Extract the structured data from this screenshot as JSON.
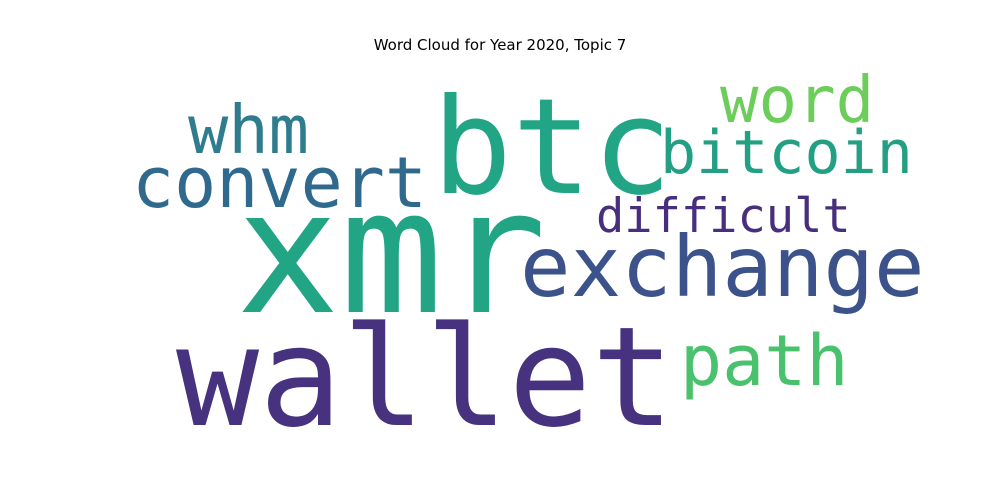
{
  "chart_data": {
    "type": "word_cloud",
    "title": "Word Cloud for Year 2020, Topic 7",
    "words": [
      {
        "text": "xmr",
        "weight": 1.0,
        "color": "#21a585"
      },
      {
        "text": "wallet",
        "weight": 0.78,
        "color": "#46327e"
      },
      {
        "text": "btc",
        "weight": 0.76,
        "color": "#21a585"
      },
      {
        "text": "exchange",
        "weight": 0.48,
        "color": "#3b528b"
      },
      {
        "text": "convert",
        "weight": 0.4,
        "color": "#30698e"
      },
      {
        "text": "path",
        "weight": 0.4,
        "color": "#4ac16d"
      },
      {
        "text": "whm",
        "weight": 0.38,
        "color": "#2e7c8e"
      },
      {
        "text": "word",
        "weight": 0.36,
        "color": "#6ccd5a"
      },
      {
        "text": "bitcoin",
        "weight": 0.34,
        "color": "#23a083"
      },
      {
        "text": "difficult",
        "weight": 0.27,
        "color": "#472f7d"
      }
    ]
  }
}
